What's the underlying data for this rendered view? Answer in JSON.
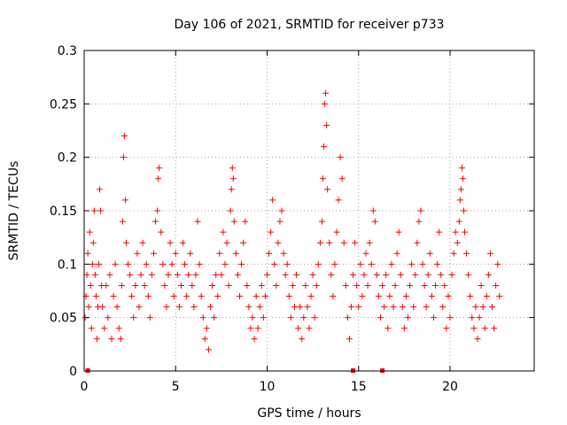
{
  "chart_data": {
    "type": "scatter",
    "title": "Day 106 of 2021, SRMTID for receiver p733",
    "xlabel": "GPS time / hours",
    "ylabel": "SRMTID / TECUs",
    "xlim": [
      0,
      24.6
    ],
    "ylim": [
      0,
      0.3
    ],
    "xticks": [
      0,
      5,
      10,
      15,
      20
    ],
    "xtick_labels": [
      "0",
      "5",
      "10",
      "15",
      "20"
    ],
    "yticks": [
      0,
      0.05,
      0.1,
      0.15,
      0.2,
      0.25,
      0.3
    ],
    "ytick_labels": [
      "0",
      "0.05",
      "0.1",
      "0.15",
      "0.2",
      "0.25",
      "0.3"
    ],
    "grid": true,
    "marker": "+",
    "series_color": "#ff0000",
    "x_range_of_data": [
      0,
      22.7
    ],
    "series": [
      {
        "name": "SRMTID",
        "points": [
          [
            0.05,
            0.05
          ],
          [
            0.1,
            0.07
          ],
          [
            0.15,
            0.09
          ],
          [
            0.2,
            0.11
          ],
          [
            0.25,
            0.06
          ],
          [
            0.3,
            0.13
          ],
          [
            0.35,
            0.08
          ],
          [
            0.4,
            0.04
          ],
          [
            0.45,
            0.1
          ],
          [
            0.5,
            0.12
          ],
          [
            0.55,
            0.15
          ],
          [
            0.6,
            0.09
          ],
          [
            0.65,
            0.07
          ],
          [
            0.7,
            0.03
          ],
          [
            0.75,
            0.06
          ],
          [
            0.8,
            0.1
          ],
          [
            0.85,
            0.17
          ],
          [
            0.9,
            0.15
          ],
          [
            0.95,
            0.08
          ],
          [
            1.0,
            0.06
          ],
          [
            1.1,
            0.04
          ],
          [
            1.2,
            0.08
          ],
          [
            1.3,
            0.05
          ],
          [
            1.4,
            0.09
          ],
          [
            1.5,
            0.03
          ],
          [
            1.6,
            0.07
          ],
          [
            1.7,
            0.1
          ],
          [
            1.8,
            0.06
          ],
          [
            1.9,
            0.04
          ],
          [
            2.0,
            0.03
          ],
          [
            2.05,
            0.08
          ],
          [
            2.1,
            0.14
          ],
          [
            2.15,
            0.2
          ],
          [
            2.2,
            0.22
          ],
          [
            2.25,
            0.16
          ],
          [
            2.3,
            0.12
          ],
          [
            2.4,
            0.1
          ],
          [
            2.5,
            0.09
          ],
          [
            2.6,
            0.07
          ],
          [
            2.7,
            0.05
          ],
          [
            2.8,
            0.08
          ],
          [
            2.9,
            0.11
          ],
          [
            3.0,
            0.06
          ],
          [
            3.1,
            0.09
          ],
          [
            3.2,
            0.12
          ],
          [
            3.3,
            0.08
          ],
          [
            3.4,
            0.1
          ],
          [
            3.5,
            0.07
          ],
          [
            3.6,
            0.05
          ],
          [
            3.7,
            0.09
          ],
          [
            3.8,
            0.11
          ],
          [
            3.9,
            0.14
          ],
          [
            4.0,
            0.15
          ],
          [
            4.05,
            0.18
          ],
          [
            4.1,
            0.19
          ],
          [
            4.2,
            0.13
          ],
          [
            4.3,
            0.1
          ],
          [
            4.4,
            0.08
          ],
          [
            4.5,
            0.06
          ],
          [
            4.6,
            0.09
          ],
          [
            4.7,
            0.12
          ],
          [
            4.8,
            0.1
          ],
          [
            4.9,
            0.07
          ],
          [
            5.0,
            0.11
          ],
          [
            5.1,
            0.09
          ],
          [
            5.2,
            0.06
          ],
          [
            5.3,
            0.08
          ],
          [
            5.4,
            0.12
          ],
          [
            5.5,
            0.1
          ],
          [
            5.6,
            0.07
          ],
          [
            5.7,
            0.09
          ],
          [
            5.8,
            0.11
          ],
          [
            5.9,
            0.08
          ],
          [
            6.0,
            0.06
          ],
          [
            6.1,
            0.09
          ],
          [
            6.2,
            0.14
          ],
          [
            6.3,
            0.1
          ],
          [
            6.4,
            0.07
          ],
          [
            6.5,
            0.05
          ],
          [
            6.6,
            0.03
          ],
          [
            6.7,
            0.04
          ],
          [
            6.8,
            0.02
          ],
          [
            6.9,
            0.06
          ],
          [
            7.0,
            0.08
          ],
          [
            7.1,
            0.05
          ],
          [
            7.2,
            0.09
          ],
          [
            7.3,
            0.07
          ],
          [
            7.4,
            0.11
          ],
          [
            7.5,
            0.09
          ],
          [
            7.6,
            0.13
          ],
          [
            7.7,
            0.1
          ],
          [
            7.8,
            0.12
          ],
          [
            7.9,
            0.08
          ],
          [
            8.0,
            0.15
          ],
          [
            8.05,
            0.17
          ],
          [
            8.1,
            0.19
          ],
          [
            8.15,
            0.18
          ],
          [
            8.2,
            0.14
          ],
          [
            8.3,
            0.11
          ],
          [
            8.4,
            0.09
          ],
          [
            8.5,
            0.07
          ],
          [
            8.6,
            0.1
          ],
          [
            8.7,
            0.12
          ],
          [
            8.8,
            0.14
          ],
          [
            8.9,
            0.08
          ],
          [
            9.0,
            0.06
          ],
          [
            9.1,
            0.04
          ],
          [
            9.2,
            0.05
          ],
          [
            9.3,
            0.03
          ],
          [
            9.4,
            0.07
          ],
          [
            9.5,
            0.04
          ],
          [
            9.6,
            0.06
          ],
          [
            9.7,
            0.08
          ],
          [
            9.8,
            0.05
          ],
          [
            9.9,
            0.07
          ],
          [
            10.0,
            0.09
          ],
          [
            10.1,
            0.11
          ],
          [
            10.2,
            0.13
          ],
          [
            10.3,
            0.16
          ],
          [
            10.4,
            0.1
          ],
          [
            10.5,
            0.08
          ],
          [
            10.6,
            0.12
          ],
          [
            10.7,
            0.14
          ],
          [
            10.8,
            0.15
          ],
          [
            10.9,
            0.11
          ],
          [
            11.0,
            0.09
          ],
          [
            11.1,
            0.1
          ],
          [
            11.2,
            0.07
          ],
          [
            11.3,
            0.05
          ],
          [
            11.4,
            0.08
          ],
          [
            11.5,
            0.06
          ],
          [
            11.6,
            0.09
          ],
          [
            11.7,
            0.04
          ],
          [
            11.8,
            0.06
          ],
          [
            11.9,
            0.03
          ],
          [
            12.0,
            0.05
          ],
          [
            12.1,
            0.08
          ],
          [
            12.2,
            0.06
          ],
          [
            12.3,
            0.04
          ],
          [
            12.4,
            0.07
          ],
          [
            12.5,
            0.09
          ],
          [
            12.6,
            0.05
          ],
          [
            12.7,
            0.08
          ],
          [
            12.8,
            0.1
          ],
          [
            12.9,
            0.12
          ],
          [
            13.0,
            0.14
          ],
          [
            13.05,
            0.18
          ],
          [
            13.1,
            0.21
          ],
          [
            13.15,
            0.25
          ],
          [
            13.2,
            0.26
          ],
          [
            13.25,
            0.23
          ],
          [
            13.3,
            0.17
          ],
          [
            13.4,
            0.12
          ],
          [
            13.5,
            0.09
          ],
          [
            13.6,
            0.07
          ],
          [
            13.7,
            0.1
          ],
          [
            13.8,
            0.13
          ],
          [
            13.9,
            0.16
          ],
          [
            14.0,
            0.2
          ],
          [
            14.1,
            0.18
          ],
          [
            14.2,
            0.12
          ],
          [
            14.3,
            0.08
          ],
          [
            14.4,
            0.05
          ],
          [
            14.5,
            0.03
          ],
          [
            14.6,
            0.06
          ],
          [
            14.7,
            0.09
          ],
          [
            14.8,
            0.12
          ],
          [
            14.9,
            0.08
          ],
          [
            15.0,
            0.06
          ],
          [
            15.1,
            0.1
          ],
          [
            15.2,
            0.07
          ],
          [
            15.3,
            0.09
          ],
          [
            15.4,
            0.11
          ],
          [
            15.5,
            0.08
          ],
          [
            15.6,
            0.12
          ],
          [
            15.7,
            0.1
          ],
          [
            15.8,
            0.15
          ],
          [
            15.9,
            0.14
          ],
          [
            16.0,
            0.09
          ],
          [
            16.1,
            0.07
          ],
          [
            16.2,
            0.05
          ],
          [
            16.3,
            0.08
          ],
          [
            16.4,
            0.06
          ],
          [
            16.5,
            0.09
          ],
          [
            16.6,
            0.04
          ],
          [
            16.7,
            0.07
          ],
          [
            16.8,
            0.1
          ],
          [
            16.9,
            0.06
          ],
          [
            17.0,
            0.08
          ],
          [
            17.1,
            0.11
          ],
          [
            17.2,
            0.13
          ],
          [
            17.3,
            0.09
          ],
          [
            17.4,
            0.06
          ],
          [
            17.5,
            0.04
          ],
          [
            17.6,
            0.07
          ],
          [
            17.7,
            0.05
          ],
          [
            17.8,
            0.08
          ],
          [
            17.9,
            0.1
          ],
          [
            18.0,
            0.06
          ],
          [
            18.1,
            0.09
          ],
          [
            18.2,
            0.12
          ],
          [
            18.3,
            0.14
          ],
          [
            18.4,
            0.15
          ],
          [
            18.5,
            0.1
          ],
          [
            18.6,
            0.08
          ],
          [
            18.7,
            0.06
          ],
          [
            18.8,
            0.09
          ],
          [
            18.9,
            0.11
          ],
          [
            19.0,
            0.07
          ],
          [
            19.1,
            0.05
          ],
          [
            19.2,
            0.08
          ],
          [
            19.3,
            0.1
          ],
          [
            19.4,
            0.13
          ],
          [
            19.5,
            0.09
          ],
          [
            19.6,
            0.06
          ],
          [
            19.7,
            0.08
          ],
          [
            19.8,
            0.04
          ],
          [
            19.9,
            0.07
          ],
          [
            20.0,
            0.05
          ],
          [
            20.1,
            0.09
          ],
          [
            20.2,
            0.11
          ],
          [
            20.3,
            0.13
          ],
          [
            20.4,
            0.12
          ],
          [
            20.5,
            0.14
          ],
          [
            20.55,
            0.16
          ],
          [
            20.6,
            0.17
          ],
          [
            20.65,
            0.19
          ],
          [
            20.7,
            0.18
          ],
          [
            20.75,
            0.15
          ],
          [
            20.8,
            0.13
          ],
          [
            20.9,
            0.11
          ],
          [
            21.0,
            0.09
          ],
          [
            21.1,
            0.07
          ],
          [
            21.2,
            0.05
          ],
          [
            21.3,
            0.04
          ],
          [
            21.4,
            0.06
          ],
          [
            21.5,
            0.03
          ],
          [
            21.6,
            0.05
          ],
          [
            21.7,
            0.08
          ],
          [
            21.8,
            0.06
          ],
          [
            21.9,
            0.04
          ],
          [
            22.0,
            0.07
          ],
          [
            22.1,
            0.09
          ],
          [
            22.2,
            0.11
          ],
          [
            22.3,
            0.06
          ],
          [
            22.4,
            0.04
          ],
          [
            22.5,
            0.08
          ],
          [
            22.6,
            0.1
          ],
          [
            22.7,
            0.07
          ]
        ]
      }
    ],
    "gap_markers_hours": [
      0.2,
      14.7,
      16.3
    ]
  }
}
